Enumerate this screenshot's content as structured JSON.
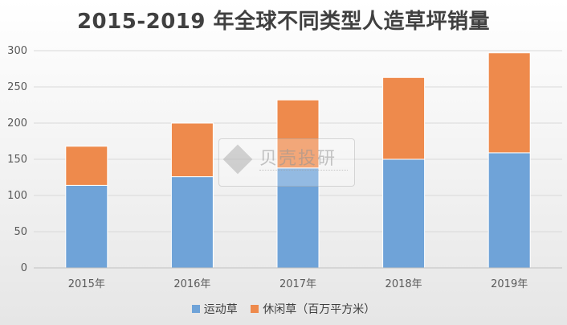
{
  "chart_data": {
    "type": "bar",
    "stacked": true,
    "title": "2015-2019 年全球不同类型人造草坪销量",
    "categories": [
      "2015年",
      "2016年",
      "2017年",
      "2018年",
      "2019年"
    ],
    "series": [
      {
        "name": "运动草",
        "values": [
          114,
          126,
          138,
          150,
          159
        ],
        "color": "#6fa3d8"
      },
      {
        "name": "休闲草（百万平方米）",
        "values": [
          54,
          74,
          94,
          113,
          138
        ],
        "color": "#ee8a4c"
      }
    ],
    "ylim": [
      0,
      300
    ],
    "yticks": [
      0,
      50,
      100,
      150,
      200,
      250,
      300
    ],
    "grid": true,
    "legend_position": "bottom"
  },
  "watermark": {
    "text": "贝壳投研",
    "logo_icon": "diamond-logo-icon"
  }
}
